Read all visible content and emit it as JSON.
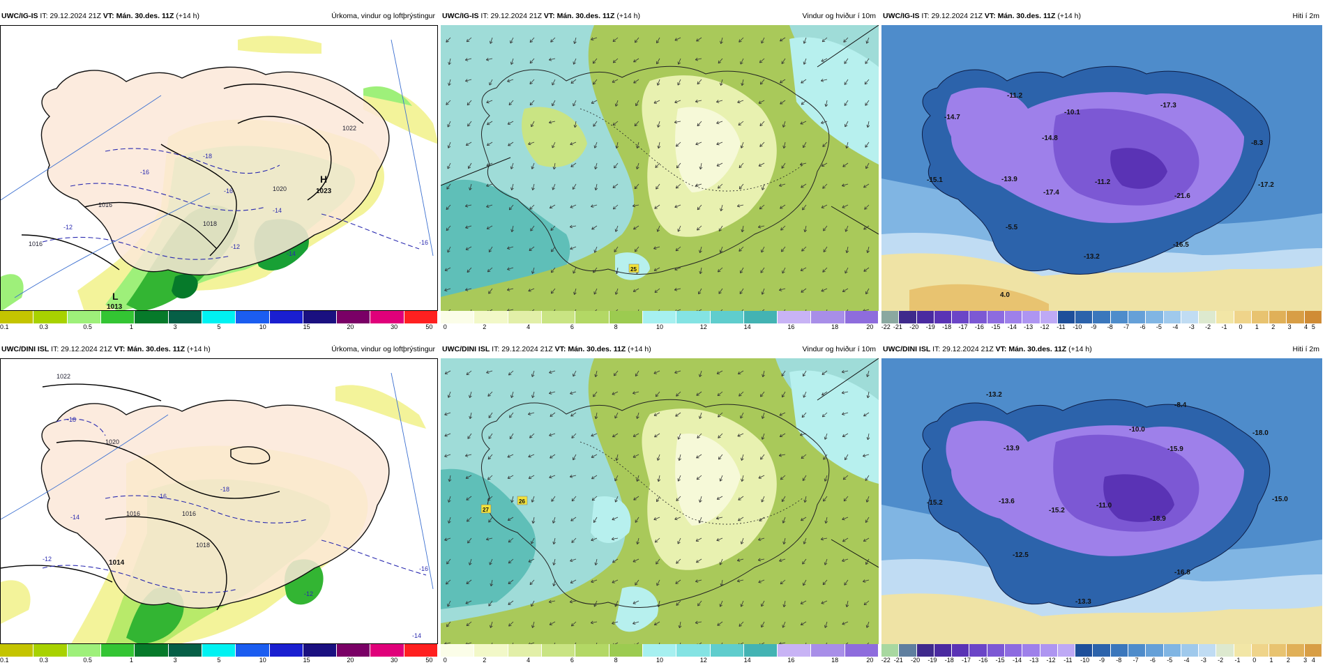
{
  "rows": [
    {
      "model": "UWC/IG-IS",
      "it_label": "IT:",
      "it_value": "29.12.2024 21Z",
      "vt_label": "VT:",
      "vt_value": "Mán. 30.des. 11Z",
      "lead": "(+14 h)"
    },
    {
      "model": "UWC/DINI ISL",
      "it_label": "IT:",
      "it_value": "29.12.2024 21Z",
      "vt_label": "VT:",
      "vt_value": "Mán. 30.des. 11Z",
      "lead": "(+14 h)"
    }
  ],
  "titles": {
    "precip": "Úrkoma, vindur og loftþrýstingur",
    "wind": "Vindur og hviður í 10m",
    "temp": "Hiti í 2m"
  },
  "scales": {
    "precip": {
      "colors": [
        "#c4c400",
        "#a8d200",
        "#9ef07a",
        "#33c533",
        "#067a2a",
        "#065f46",
        "#00f2f2",
        "#1b5df0",
        "#1a1fd0",
        "#1a1080",
        "#7a0066",
        "#e0007a",
        "#ff2020"
      ],
      "ticks": [
        "0.1",
        "0.3",
        "0.5",
        "1",
        "3",
        "5",
        "10",
        "15",
        "20",
        "30",
        "50"
      ]
    },
    "wind": {
      "colors": [
        "#fbfde8",
        "#f2f8c8",
        "#e2efa8",
        "#c9e483",
        "#b3d865",
        "#9ccb50",
        "#a6f0f0",
        "#84e3e3",
        "#5fcdcd",
        "#43b3b3",
        "#c8b3f5",
        "#a88ee8",
        "#8e6cdd"
      ],
      "ticks": [
        "0",
        "2",
        "4",
        "6",
        "8",
        "10",
        "12",
        "14",
        "16",
        "18",
        "20"
      ]
    },
    "temp_top": {
      "colors": [
        "#8aa8a0",
        "#3f2a8c",
        "#4a2aa0",
        "#5a33b5",
        "#6b45c7",
        "#7c58d4",
        "#8d6be0",
        "#9e80ea",
        "#ae95f1",
        "#bea9f5",
        "#1e4f9a",
        "#2c63ab",
        "#3b77bc",
        "#4e8ccb",
        "#65a0d8",
        "#80b5e3",
        "#9fc9ec",
        "#c0dcf3",
        "#dde9cf",
        "#f2e6a6",
        "#efd48a",
        "#e8c370",
        "#e0b058",
        "#d89e45",
        "#d08c35"
      ],
      "ticks": [
        "-22",
        "-21",
        "-20",
        "-19",
        "-18",
        "-17",
        "-16",
        "-15",
        "-14",
        "-13",
        "-12",
        "-11",
        "-10",
        "-9",
        "-8",
        "-7",
        "-6",
        "-5",
        "-4",
        "-3",
        "-2",
        "-1",
        "0",
        "1",
        "2",
        "3",
        "4",
        "5"
      ]
    },
    "temp_bottom": {
      "colors": [
        "#a8d8a0",
        "#5f7f9f",
        "#3f2a8c",
        "#4a2aa0",
        "#5a33b5",
        "#6b45c7",
        "#7c58d4",
        "#8d6be0",
        "#9e80ea",
        "#ae95f1",
        "#bea9f5",
        "#1e4f9a",
        "#2c63ab",
        "#3b77bc",
        "#4e8ccb",
        "#65a0d8",
        "#80b5e3",
        "#9fc9ec",
        "#c0dcf3",
        "#dde9cf",
        "#f2e6a6",
        "#efd48a",
        "#e8c370",
        "#e0b058",
        "#d89e45"
      ],
      "ticks": [
        "-22",
        "-21",
        "-20",
        "-19",
        "-18",
        "-17",
        "-16",
        "-15",
        "-14",
        "-13",
        "-12",
        "-11",
        "-10",
        "-9",
        "-8",
        "-7",
        "-6",
        "-5",
        "-4",
        "-3",
        "-2",
        "-1",
        "0",
        "1",
        "2",
        "3",
        "4"
      ]
    }
  },
  "map_labels": {
    "precip_top": {
      "high": "H",
      "high_value": "1023",
      "low": "L",
      "low_value": "1013",
      "isobars": [
        "1022",
        "1020",
        "1018",
        "1016",
        "1016"
      ],
      "isotherms": [
        "-18",
        "-16",
        "-14",
        "-12",
        "-12",
        "-16",
        "-14",
        "-16"
      ]
    },
    "precip_bottom": {
      "isobars": [
        "1022",
        "1020",
        "1018",
        "1016",
        "1014",
        "1016"
      ],
      "isotherms": [
        "-18",
        "-18",
        "-16",
        "-14",
        "-12",
        "-12",
        "-16",
        "-14"
      ]
    },
    "wind_top": {
      "gust_labels": [
        "25"
      ]
    },
    "wind_bottom": {
      "gust_labels": [
        "27",
        "26"
      ]
    },
    "temp_top": {
      "values": [
        "-14.7",
        "-11.2",
        "-10.1",
        "-17.3",
        "-14.8",
        "-8.3",
        "-15.1",
        "-13.9",
        "-17.4",
        "-11.2",
        "-21.6",
        "-17.2",
        "-5.5",
        "-13.2",
        "-16.5",
        "4.0"
      ]
    },
    "temp_bottom": {
      "values": [
        "-13.2",
        "-8.4",
        "-10.0",
        "-18.0",
        "-13.9",
        "-15.9",
        "-15.2",
        "-13.6",
        "-15.2",
        "-11.0",
        "-18.9",
        "-15.0",
        "-12.5",
        "-13.3",
        "-16.8"
      ]
    }
  }
}
